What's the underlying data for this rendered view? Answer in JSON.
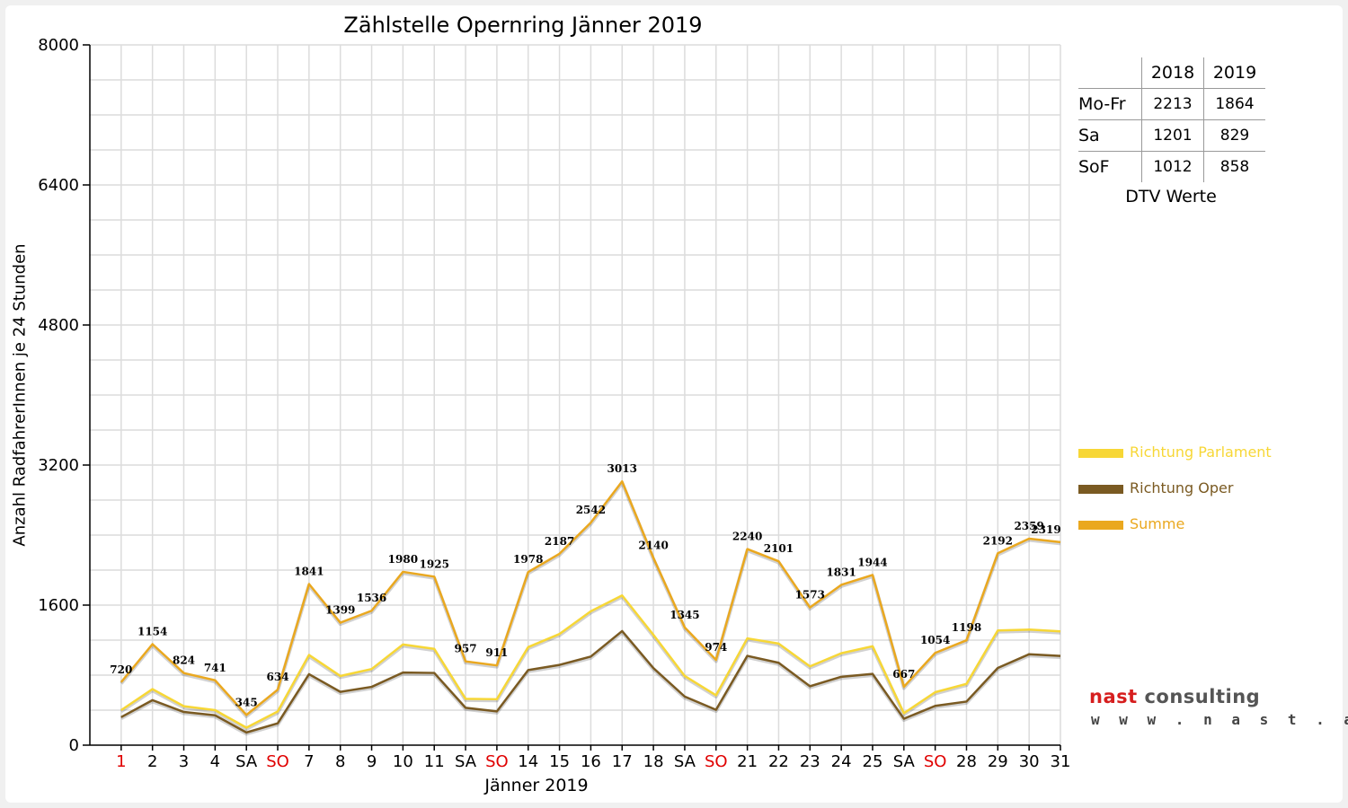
{
  "colors": {
    "parlament": "#f7d736",
    "oper": "#7a5a22",
    "summe": "#eaa81f",
    "weekend_red": "#e00000",
    "logo_red": "#d61e1e",
    "logo_gray": "#555555"
  },
  "chart_data": {
    "type": "line",
    "title": "Zählstelle Opernring Jänner 2019",
    "xlabel": "Jänner 2019",
    "ylabel": "Anzahl RadfahrerInnen je 24 Stunden",
    "ylim": [
      0,
      8000
    ],
    "yticks": [
      0,
      1600,
      3200,
      4800,
      6400,
      8000
    ],
    "grid": true,
    "legend_position": "right",
    "categories": [
      "1",
      "2",
      "3",
      "4",
      "SA",
      "SO",
      "7",
      "8",
      "9",
      "10",
      "11",
      "SA",
      "SO",
      "14",
      "15",
      "16",
      "17",
      "18",
      "SA",
      "SO",
      "21",
      "22",
      "23",
      "24",
      "25",
      "SA",
      "SO",
      "28",
      "29",
      "30",
      "31"
    ],
    "red_categories": [
      0,
      5,
      12,
      19,
      26
    ],
    "series": [
      {
        "name": "Richtung Parlament",
        "color": "#f7d736",
        "values": [
          400,
          640,
          445,
          400,
          200,
          385,
          1030,
          790,
          870,
          1150,
          1100,
          530,
          525,
          1120,
          1270,
          1530,
          1710,
          1260,
          790,
          570,
          1220,
          1160,
          900,
          1050,
          1130,
          365,
          605,
          700,
          1310,
          1320,
          1300
        ]
      },
      {
        "name": "Richtung Oper",
        "color": "#7a5a22",
        "values": [
          320,
          514,
          379,
          341,
          145,
          249,
          811,
          609,
          666,
          830,
          825,
          427,
          386,
          858,
          917,
          1012,
          1303,
          880,
          555,
          404,
          1020,
          941,
          673,
          781,
          814,
          302,
          449,
          498,
          882,
          1039,
          1019
        ]
      },
      {
        "name": "Summe",
        "color": "#eaa81f",
        "values": [
          720,
          1154,
          824,
          741,
          345,
          634,
          1841,
          1399,
          1536,
          1980,
          1925,
          957,
          911,
          1978,
          2187,
          2542,
          3013,
          2140,
          1345,
          974,
          2240,
          2101,
          1573,
          1831,
          1944,
          667,
          1054,
          1198,
          2192,
          2359,
          2319
        ],
        "labels": [
          "720",
          "1154",
          "824",
          "741",
          "345",
          "634",
          "1841",
          "1399",
          "1536",
          "1980",
          "1925",
          "957",
          "911",
          "1978",
          "2187",
          "2542",
          "3013",
          "2140",
          "1345",
          "974",
          "2240",
          "2101",
          "1573",
          "1831",
          "1944",
          "667",
          "1054",
          "1198",
          "2192",
          "2359",
          "2319"
        ]
      }
    ]
  },
  "dtv": {
    "headers": [
      "",
      "2018",
      "2019"
    ],
    "rows": [
      {
        "label": "Mo-Fr",
        "v2018": "2213",
        "v2019": "1864"
      },
      {
        "label": "Sa",
        "v2018": "1201",
        "v2019": "829"
      },
      {
        "label": "SoF",
        "v2018": "1012",
        "v2019": "858"
      }
    ],
    "caption": "DTV Werte"
  },
  "legend": {
    "items": [
      {
        "label": "Richtung Parlament",
        "color": "#f7d736"
      },
      {
        "label": "Richtung Oper",
        "color": "#7a5a22"
      },
      {
        "label": "Summe",
        "color": "#eaa81f"
      }
    ]
  },
  "logo": {
    "word1": "nast",
    "word2": " consulting",
    "url": "w w w . n a s t . a t"
  }
}
